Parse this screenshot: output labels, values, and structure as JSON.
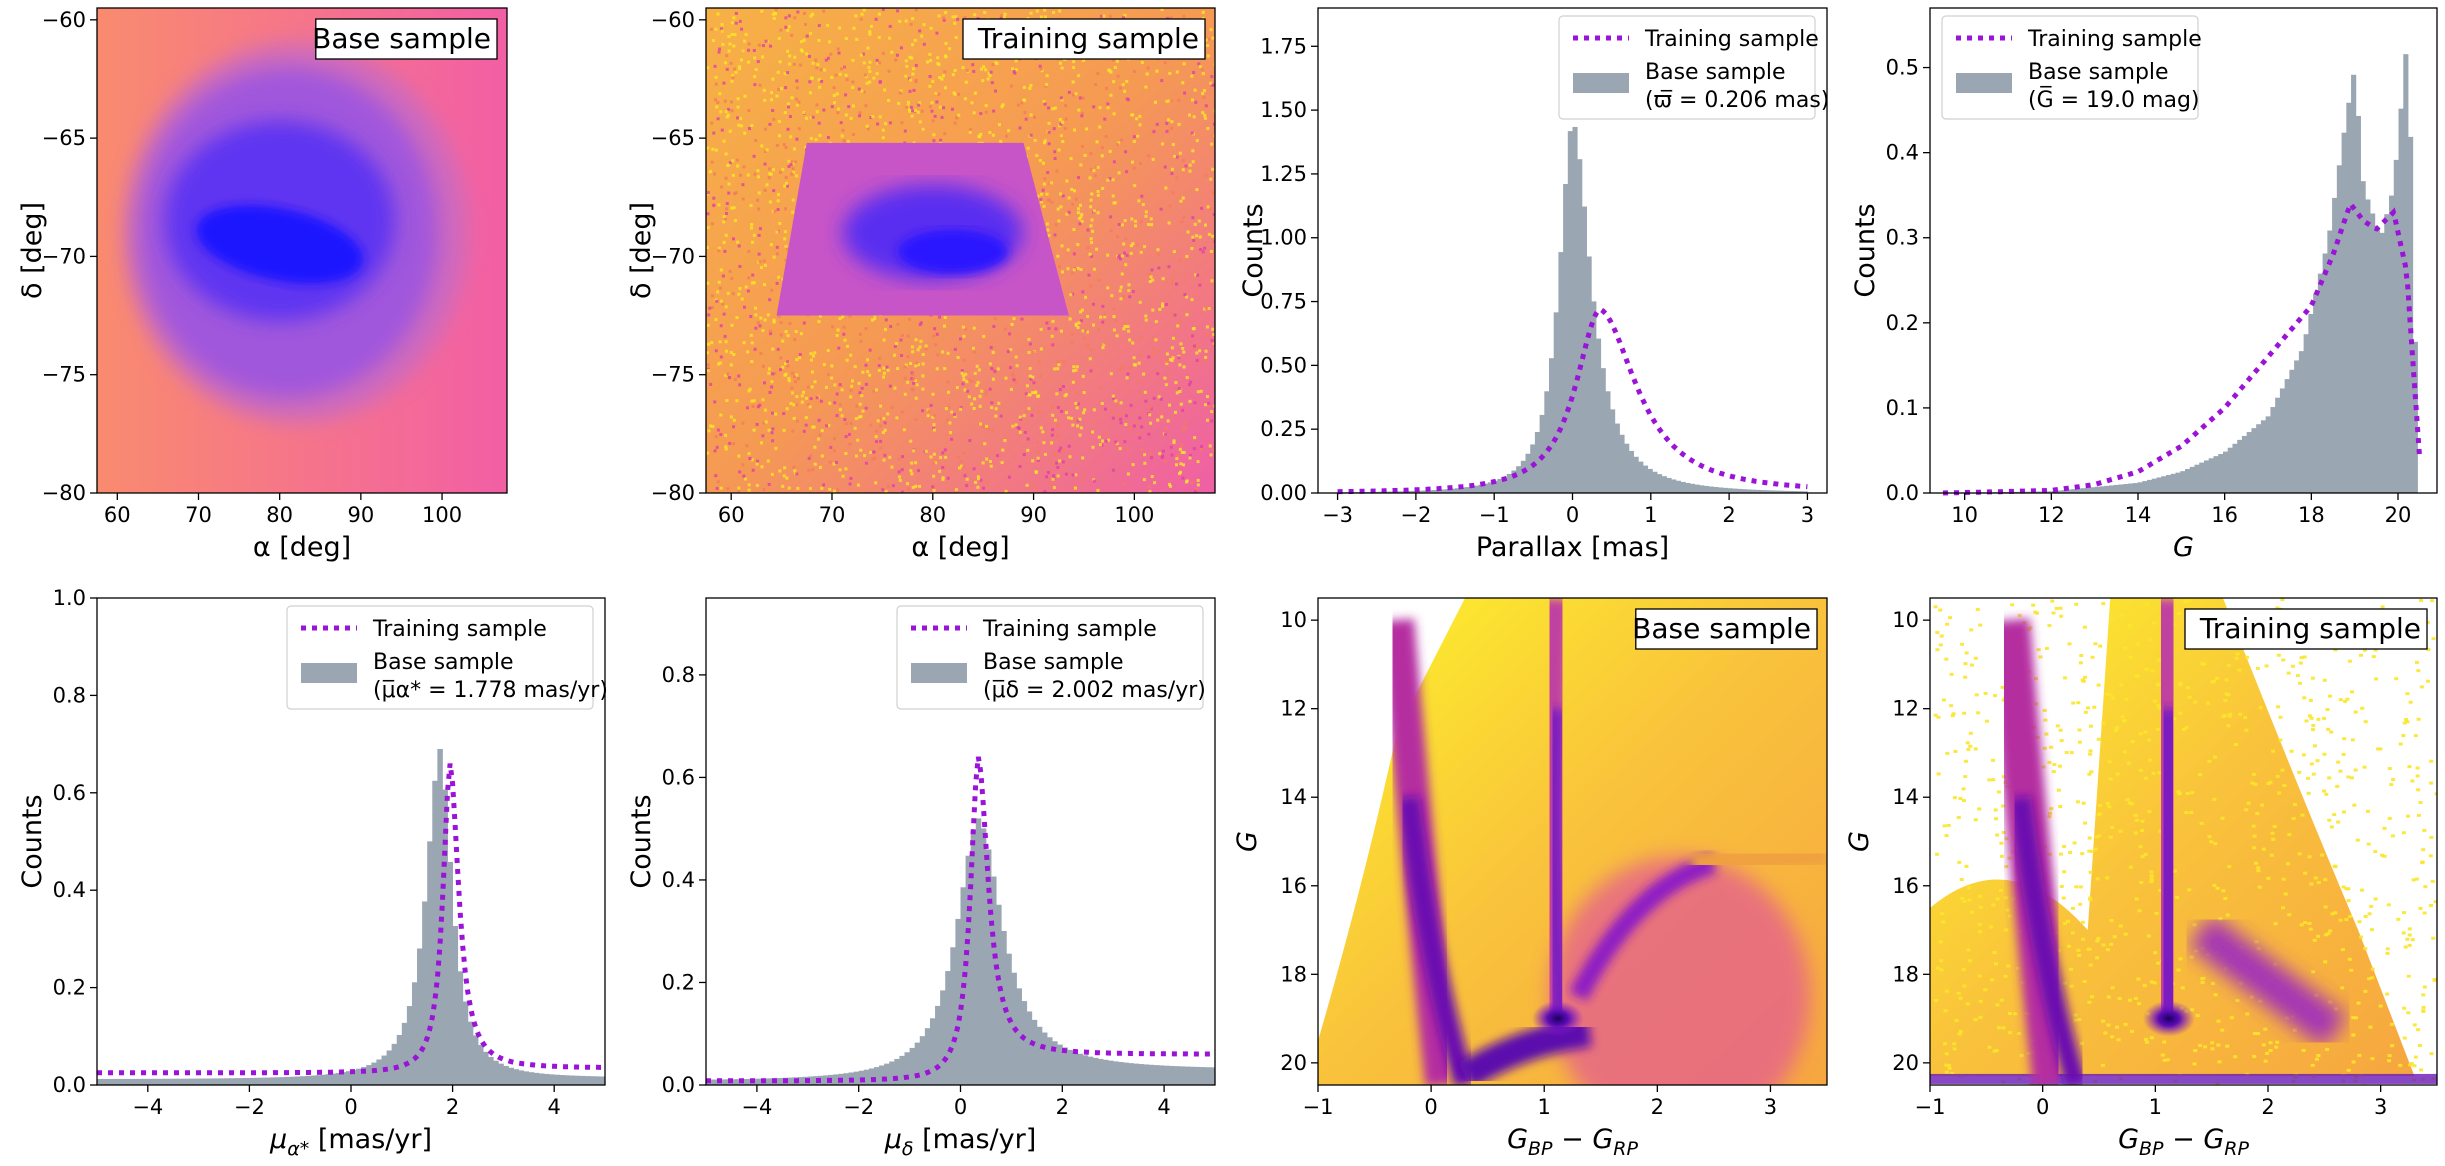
{
  "chart_data": [
    {
      "id": "p1",
      "type": "heatmap",
      "label": "Base sample",
      "xlabel": "α [deg]",
      "ylabel": "δ [deg]",
      "xlim": [
        57.5,
        108
      ],
      "ylim": [
        -80,
        -59.5
      ],
      "xticks": [
        "60",
        "70",
        "80",
        "90",
        "100"
      ],
      "xtickvals": [
        60,
        70,
        80,
        90,
        100
      ],
      "yticks": [
        "−60",
        "−65",
        "−70",
        "−75",
        "−80"
      ],
      "ytickvals": [
        -60,
        -65,
        -70,
        -75,
        -80
      ],
      "colormap": "plasma"
    },
    {
      "id": "p2",
      "type": "heatmap",
      "label": "Training sample",
      "xlabel": "α [deg]",
      "ylabel": "δ [deg]",
      "xlim": [
        57.5,
        108
      ],
      "ylim": [
        -80,
        -59.5
      ],
      "xticks": [
        "60",
        "70",
        "80",
        "90",
        "100"
      ],
      "xtickvals": [
        60,
        70,
        80,
        90,
        100
      ],
      "yticks": [
        "−60",
        "−65",
        "−70",
        "−75",
        "−80"
      ],
      "ytickvals": [
        -60,
        -65,
        -70,
        -75,
        -80
      ],
      "colormap": "plasma"
    },
    {
      "id": "p3",
      "type": "bar",
      "xlabel": "Parallax [mas]",
      "ylabel": "Counts",
      "xlim": [
        -3.25,
        3.25
      ],
      "ylim": [
        0,
        1.9
      ],
      "xticks": [
        "−3",
        "−2",
        "−1",
        "0",
        "1",
        "2",
        "3"
      ],
      "xtickvals": [
        -3,
        -2,
        -1,
        0,
        1,
        2,
        3
      ],
      "yticks": [
        "0.00",
        "0.25",
        "0.50",
        "0.75",
        "1.00",
        "1.25",
        "1.50",
        "1.75"
      ],
      "ytickvals": [
        0,
        0.25,
        0.5,
        0.75,
        1.0,
        1.25,
        1.5,
        1.75
      ],
      "legend": {
        "line": "Training sample",
        "bar": "Base sample",
        "bar2": "(ϖ̅ = 0.206 mas)",
        "loc": "upper right"
      },
      "series": [
        {
          "name": "Base sample",
          "kind": "hist",
          "center": 0.0,
          "peak": 1.46,
          "width_left": 0.22,
          "width_right": 0.3,
          "range": [
            -3,
            3
          ]
        },
        {
          "name": "Training sample",
          "kind": "line",
          "center": 0.35,
          "peak": 0.72,
          "width_left": 0.4,
          "width_right": 0.6,
          "range": [
            -3,
            3
          ]
        }
      ]
    },
    {
      "id": "p4",
      "type": "bar",
      "xlabel": "G",
      "ylabel": "Counts",
      "xlim": [
        9.2,
        20.9
      ],
      "ylim": [
        0,
        0.57
      ],
      "xticks": [
        "10",
        "12",
        "14",
        "16",
        "18",
        "20"
      ],
      "xtickvals": [
        10,
        12,
        14,
        16,
        18,
        20
      ],
      "yticks": [
        "0.0",
        "0.1",
        "0.2",
        "0.3",
        "0.4",
        "0.5"
      ],
      "ytickvals": [
        0,
        0.1,
        0.2,
        0.3,
        0.4,
        0.5
      ],
      "legend": {
        "line": "Training sample",
        "bar": "Base sample",
        "bar2": "(G̅ = 19.0 mag)",
        "loc": "upper left"
      },
      "series": [
        {
          "name": "Base sample",
          "kind": "hist",
          "points": [
            [
              9.5,
              0
            ],
            [
              12,
              0.002
            ],
            [
              14,
              0.012
            ],
            [
              15,
              0.025
            ],
            [
              16,
              0.048
            ],
            [
              17,
              0.09
            ],
            [
              17.8,
              0.17
            ],
            [
              18.4,
              0.3
            ],
            [
              18.8,
              0.44
            ],
            [
              19.0,
              0.5
            ],
            [
              19.2,
              0.36
            ],
            [
              19.6,
              0.3
            ],
            [
              19.9,
              0.36
            ],
            [
              20.1,
              0.47
            ],
            [
              20.2,
              0.53
            ],
            [
              20.3,
              0.4
            ],
            [
              20.45,
              0.05
            ]
          ]
        },
        {
          "name": "Training sample",
          "kind": "line",
          "points": [
            [
              9.5,
              0
            ],
            [
              12,
              0.003
            ],
            [
              13,
              0.01
            ],
            [
              14,
              0.025
            ],
            [
              15,
              0.055
            ],
            [
              16,
              0.1
            ],
            [
              17,
              0.16
            ],
            [
              18,
              0.22
            ],
            [
              18.5,
              0.28
            ],
            [
              18.9,
              0.34
            ],
            [
              19.2,
              0.32
            ],
            [
              19.5,
              0.31
            ],
            [
              19.9,
              0.33
            ],
            [
              20.2,
              0.26
            ],
            [
              20.5,
              0.04
            ]
          ]
        }
      ]
    },
    {
      "id": "p5",
      "type": "bar",
      "xlabel": "μα* [mas/yr]",
      "ylabel": "Counts",
      "xlim": [
        -5,
        5
      ],
      "ylim": [
        0,
        1.0
      ],
      "xticks": [
        "−4",
        "−2",
        "0",
        "2",
        "4"
      ],
      "xtickvals": [
        -4,
        -2,
        0,
        2,
        4
      ],
      "yticks": [
        "0.0",
        "0.2",
        "0.4",
        "0.6",
        "0.8",
        "1.0"
      ],
      "ytickvals": [
        0,
        0.2,
        0.4,
        0.6,
        0.8,
        1.0
      ],
      "legend": {
        "line": "Training sample",
        "bar": "Base sample",
        "bar2": "(μ̅α* = 1.778 mas/yr)",
        "loc": "upper right"
      },
      "series": [
        {
          "name": "Base sample",
          "kind": "hist",
          "center": 1.75,
          "peak": 0.69,
          "width_left": 0.35,
          "width_right": 0.3,
          "base_left": 0.012,
          "base_right": 0.015,
          "range": [
            -5,
            5
          ]
        },
        {
          "name": "Training sample",
          "kind": "line",
          "center": 1.95,
          "peak": 0.66,
          "width_left": 0.18,
          "width_right": 0.22,
          "base_left": 0.025,
          "base_right": 0.035,
          "range": [
            -5,
            5
          ]
        }
      ]
    },
    {
      "id": "p6",
      "type": "bar",
      "xlabel": "μδ [mas/yr]",
      "ylabel": "Counts",
      "xlim": [
        -5,
        5
      ],
      "ylim": [
        0,
        0.95
      ],
      "xticks": [
        "−4",
        "−2",
        "0",
        "2",
        "4"
      ],
      "xtickvals": [
        -4,
        -2,
        0,
        2,
        4
      ],
      "yticks": [
        "0.0",
        "0.2",
        "0.4",
        "0.6",
        "0.8"
      ],
      "ytickvals": [
        0,
        0.2,
        0.4,
        0.6,
        0.8
      ],
      "legend": {
        "line": "Training sample",
        "bar": "Base sample",
        "bar2": "(μ̅δ = 2.002 mas/yr)",
        "loc": "upper right"
      },
      "series": [
        {
          "name": "Base sample",
          "kind": "hist",
          "center": 0.35,
          "peak": 0.52,
          "width_left": 0.55,
          "width_right": 0.6,
          "base_left": 0.008,
          "base_right": 0.03,
          "range": [
            -5,
            5
          ]
        },
        {
          "name": "Training sample",
          "kind": "line",
          "center": 0.35,
          "peak": 0.64,
          "width_left": 0.2,
          "width_right": 0.25,
          "base_left": 0.008,
          "base_right": 0.06,
          "range": [
            -5,
            5
          ]
        }
      ]
    },
    {
      "id": "p7",
      "type": "heatmap",
      "label": "Base sample",
      "xlabel": "GBP − GRP",
      "ylabel": "G",
      "xlim": [
        -1,
        3.5
      ],
      "ylim": [
        20.5,
        9.5
      ],
      "xticks": [
        "−1",
        "0",
        "1",
        "2",
        "3"
      ],
      "xtickvals": [
        -1,
        0,
        1,
        2,
        3
      ],
      "yticks": [
        "10",
        "12",
        "14",
        "16",
        "18",
        "20"
      ],
      "ytickvals": [
        10,
        12,
        14,
        16,
        18,
        20
      ],
      "colormap": "plasma"
    },
    {
      "id": "p8",
      "type": "heatmap",
      "label": "Training sample",
      "xlabel": "GBP − GRP",
      "ylabel": "G",
      "xlim": [
        -1,
        3.5
      ],
      "ylim": [
        20.5,
        9.5
      ],
      "xticks": [
        "−1",
        "0",
        "1",
        "2",
        "3"
      ],
      "xtickvals": [
        -1,
        0,
        1,
        2,
        3
      ],
      "yticks": [
        "10",
        "12",
        "14",
        "16",
        "18",
        "20"
      ],
      "ytickvals": [
        10,
        12,
        14,
        16,
        18,
        20
      ],
      "colormap": "plasma"
    }
  ],
  "colors": {
    "hist": "#9aa6b2",
    "line": "#9b12d8"
  }
}
